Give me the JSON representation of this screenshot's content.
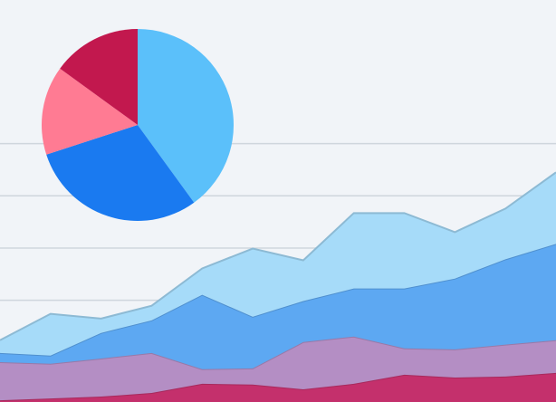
{
  "chart_data": [
    {
      "type": "area",
      "categories": [
        null,
        null,
        null,
        null,
        null,
        null,
        null,
        null,
        null,
        null,
        null,
        null
      ],
      "series": [
        {
          "color": "#c4306c",
          "values": [
            1.7,
            2.4,
            3.1,
            4.5,
            8,
            7.7,
            5.9,
            8,
            11.5,
            10.4,
            10.8,
            12.2
          ]
        },
        {
          "color": "#b48ec4",
          "values": [
            14.6,
            13.3,
            14.6,
            15.3,
            5.6,
            6.2,
            18.1,
            18.1,
            10.1,
            10.8,
            12.2,
            12.5
          ]
        },
        {
          "color": "#5da8f2",
          "values": [
            3.5,
            3.1,
            9.8,
            12.5,
            28.5,
            19.8,
            15.7,
            18.4,
            22.9,
            27.1,
            32.7,
            36.9
          ]
        },
        {
          "color": "#a6dbf9",
          "values": [
            4.9,
            16,
            5.5,
            5.6,
            10.1,
            26.1,
            15.6,
            28.9,
            28.9,
            17.8,
            19.4,
            27.4
          ]
        }
      ],
      "ylim": [
        0,
        155
      ],
      "yticks": [
        40,
        60,
        80,
        100
      ],
      "grid": true
    },
    {
      "type": "pie",
      "values": [
        40,
        30,
        15,
        15
      ],
      "colors": [
        "#5bc0fa",
        "#1a7af0",
        "#ff7b93",
        "#c2184e"
      ]
    }
  ]
}
